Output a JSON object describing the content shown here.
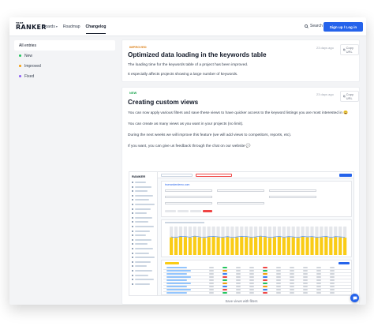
{
  "header": {
    "logo_small": "TRUE",
    "logo_big": "RANKER",
    "nav": [
      {
        "label": "Boards",
        "has_caret": true
      },
      {
        "label": "Roadmap",
        "has_caret": false
      },
      {
        "label": "Changelog",
        "has_caret": false,
        "active": true
      }
    ],
    "search_label": "Search",
    "signup_label": "Sign up / Log in",
    "accent_color": "#2563eb"
  },
  "sidebar": {
    "items": [
      {
        "label": "All entries",
        "active": true,
        "dot": null
      },
      {
        "label": "New",
        "dot": "#22c55e"
      },
      {
        "label": "Improved",
        "dot": "#f59e0b"
      },
      {
        "label": "Fixed",
        "dot": "#8b5cf6"
      }
    ]
  },
  "entries": [
    {
      "badge": "IMPROVED",
      "date": "23 days ago",
      "copy_label": "Copy URL",
      "title": "Optimized data loading in the keywords table",
      "paragraphs": [
        "The loading time for the keywords table of a project has been improved.",
        "It especially affects projects showing a large number of keywords."
      ]
    },
    {
      "badge": "NEW",
      "date": "23 days ago",
      "copy_label": "Copy URL",
      "title": "Creating custom views",
      "paragraphs": [
        "You can now apply various filters and save these views to have quicker access to the keyword listings you are most interested in 😄",
        "You can create as many views as you want in your projects (no limit).",
        "During the next weeks we will improve this feature (we will add views to competitors, reports, etc).",
        "If you want, you can give us feedback through the chat on our website 💬"
      ],
      "screenshot": {
        "logo": "RANKER",
        "url_text": "truerankerdemo.com",
        "caption": "Save views with filters",
        "chart": {
          "type": "bar",
          "series_color_main": "#facc15",
          "series_color_secondary": "#e5e7eb",
          "line_color": "#3b82f6",
          "bars": [
            0.62,
            0.6,
            0.64,
            0.63,
            0.61,
            0.65,
            0.62,
            0.6,
            0.63,
            0.64,
            0.62,
            0.61,
            0.63,
            0.6,
            0.62,
            0.64,
            0.63,
            0.61,
            0.62,
            0.65,
            0.63,
            0.6,
            0.62,
            0.64,
            0.61,
            0.63,
            0.62,
            0.6,
            0.64,
            0.62,
            0.63,
            0.61,
            0.62,
            0.64,
            0.6,
            0.63,
            0.62,
            0.61
          ]
        }
      }
    }
  ],
  "icons": {
    "search": "search-icon",
    "copy": "copy-icon",
    "chat": "chat-bubble-icon"
  }
}
